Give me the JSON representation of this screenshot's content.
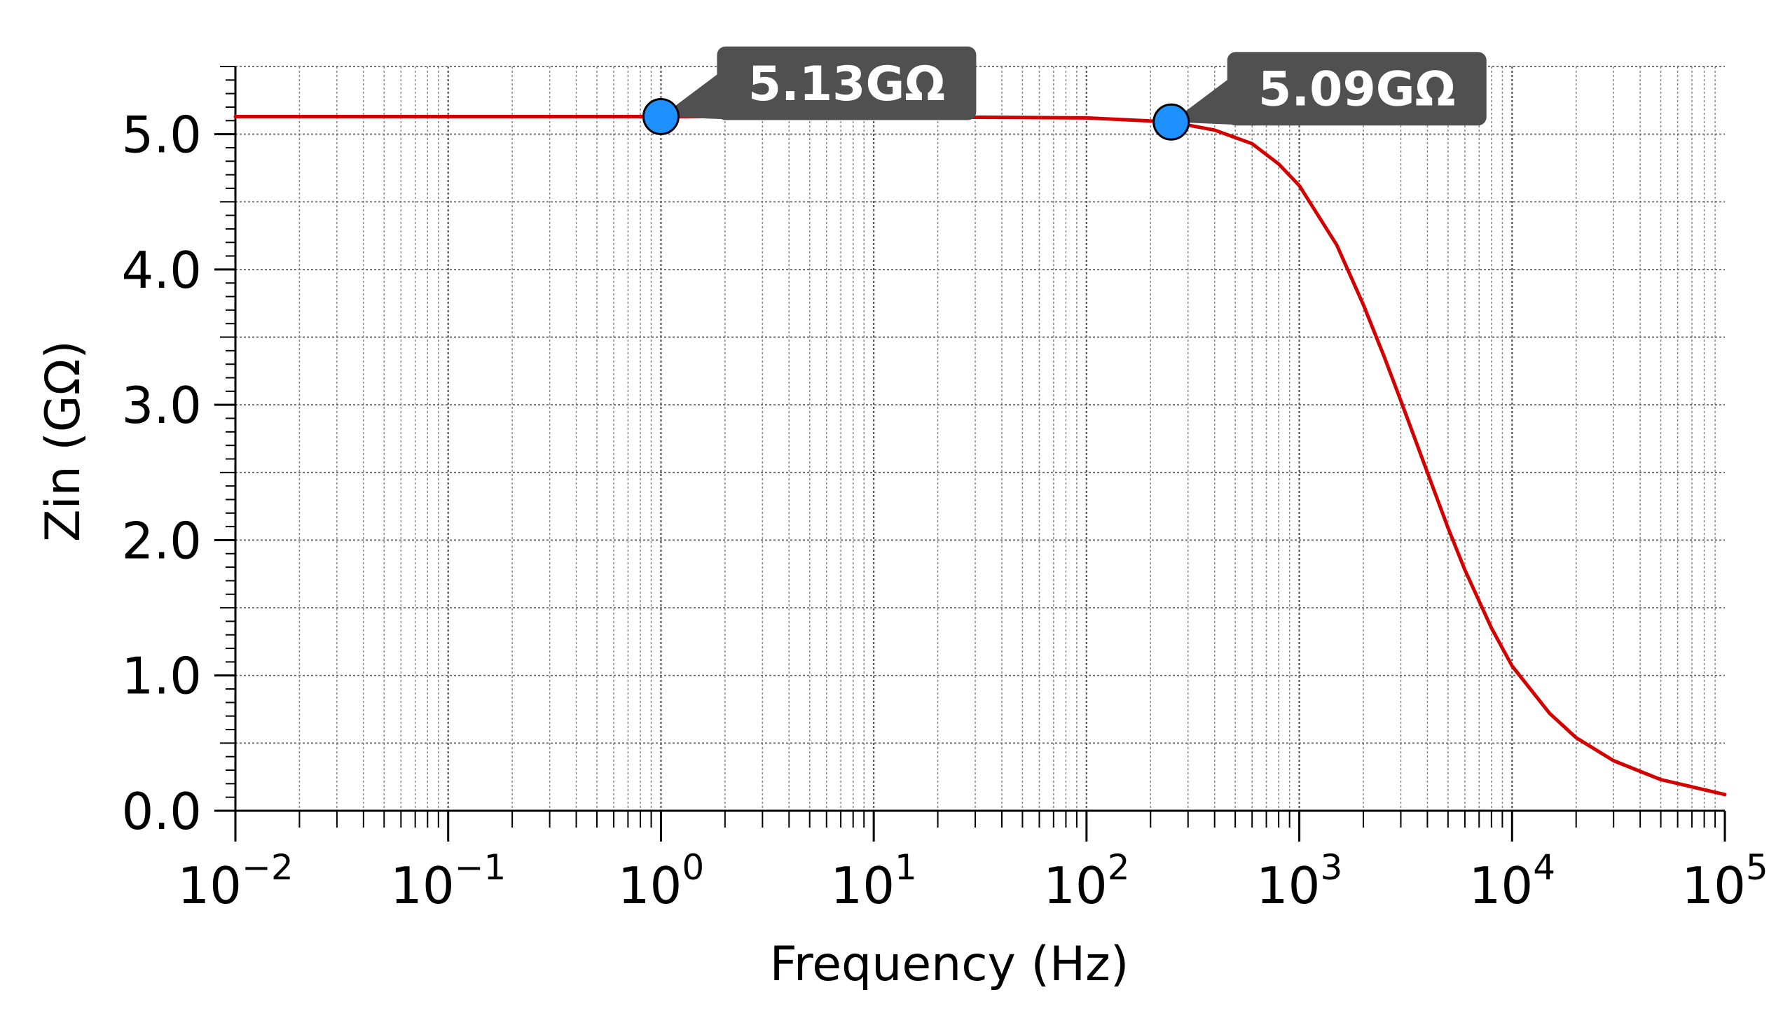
{
  "chart_data": {
    "type": "line",
    "title": "",
    "xlabel": "Frequency (Hz)",
    "ylabel": "Zin (GΩ)",
    "x_scale": "log",
    "xlim": [
      0.01,
      100000
    ],
    "ylim": [
      0,
      5.5
    ],
    "x_ticks": [
      {
        "base": "10",
        "exp": "−2"
      },
      {
        "base": "10",
        "exp": "−1"
      },
      {
        "base": "10",
        "exp": "0"
      },
      {
        "base": "10",
        "exp": "1"
      },
      {
        "base": "10",
        "exp": "2"
      },
      {
        "base": "10",
        "exp": "3"
      },
      {
        "base": "10",
        "exp": "4"
      },
      {
        "base": "10",
        "exp": "5"
      }
    ],
    "y_ticks": [
      {
        "value": 0,
        "label": "0.0"
      },
      {
        "value": 1,
        "label": "1.0"
      },
      {
        "value": 2,
        "label": "2.0"
      },
      {
        "value": 3,
        "label": "3.0"
      },
      {
        "value": 4,
        "label": "4.0"
      },
      {
        "value": 5,
        "label": "5.0"
      }
    ],
    "grid": true,
    "line_color": "#d40000",
    "marker_color": "#1e90ff",
    "annotation_color": "#505050",
    "series": [
      {
        "x": [
          0.01,
          0.1,
          1,
          10,
          100,
          250,
          400,
          600,
          800,
          1000,
          1500,
          2000,
          2500,
          3000,
          4000,
          5000,
          6000,
          8000,
          10000,
          15000,
          20000,
          30000,
          50000,
          100000
        ],
        "y": [
          5.13,
          5.13,
          5.13,
          5.13,
          5.12,
          5.09,
          5.03,
          4.93,
          4.78,
          4.62,
          4.18,
          3.74,
          3.36,
          3.03,
          2.5,
          2.09,
          1.78,
          1.35,
          1.07,
          0.72,
          0.54,
          0.37,
          0.23,
          0.12
        ]
      }
    ],
    "annotations": [
      {
        "x": 1,
        "y": 5.13,
        "text": "5.13GΩ"
      },
      {
        "x": 250,
        "y": 5.09,
        "text": "5.09GΩ"
      }
    ]
  }
}
